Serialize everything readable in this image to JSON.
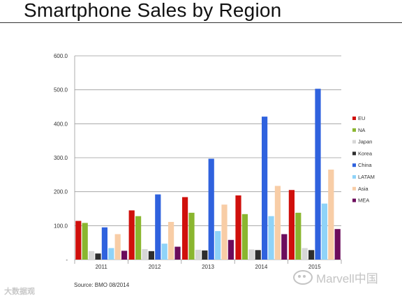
{
  "page": {
    "title": "Smartphone Sales by Region",
    "source": "Source: BMO 08/2014",
    "watermark_left": "大数据观",
    "watermark_right": "Marvell中国"
  },
  "chart_data": {
    "type": "bar",
    "title": "",
    "xlabel": "",
    "ylabel": "",
    "categories": [
      "2011",
      "2012",
      "2013",
      "2014",
      "2015"
    ],
    "ylim": [
      0,
      600
    ],
    "yticks": [
      0,
      100,
      200,
      300,
      400,
      500,
      600
    ],
    "ytick_labels": [
      "-",
      "100.0",
      "200.0",
      "300.0",
      "400.0",
      "500.0",
      "600.0"
    ],
    "grid": true,
    "legend_position": "right",
    "series": [
      {
        "name": "EU",
        "color": "#d0100c",
        "values": [
          114,
          145,
          184,
          189,
          205
        ]
      },
      {
        "name": "NA",
        "color": "#8ab62f",
        "values": [
          108,
          128,
          138,
          134,
          138
        ]
      },
      {
        "name": "Japan",
        "color": "#d7d7d7",
        "values": [
          25,
          31,
          29,
          30,
          34
        ]
      },
      {
        "name": "Korea",
        "color": "#2e2e2e",
        "values": [
          18,
          25,
          27,
          28,
          28
        ]
      },
      {
        "name": "China",
        "color": "#2f62de",
        "values": [
          95,
          192,
          297,
          421,
          503
        ]
      },
      {
        "name": "LATAM",
        "color": "#8fd3f8",
        "values": [
          34,
          47,
          84,
          128,
          165
        ]
      },
      {
        "name": "Asia",
        "color": "#f8cda6",
        "values": [
          75,
          111,
          162,
          217,
          265
        ]
      },
      {
        "name": "MEA",
        "color": "#6c0c5c",
        "values": [
          26,
          38,
          58,
          75,
          90
        ]
      }
    ]
  }
}
